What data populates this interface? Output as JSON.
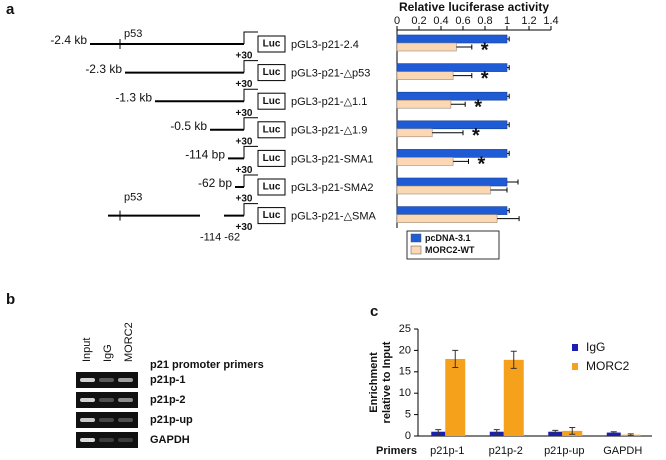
{
  "panel_labels": [
    "a",
    "b",
    "c"
  ],
  "promoter_diagram": {
    "rows": [
      {
        "start": "-2.4 kb",
        "tss": "+30",
        "reporter": "Luc"
      },
      {
        "start": "-2.3 kb",
        "tss": "+30",
        "reporter": "Luc"
      },
      {
        "start": "-1.3 kb",
        "tss": "+30",
        "reporter": "Luc"
      },
      {
        "start": "-0.5 kb",
        "tss": "+30",
        "reporter": "Luc"
      },
      {
        "start": "-114 bp",
        "tss": "+30",
        "reporter": "Luc"
      },
      {
        "start": "-62 bp",
        "tss": "+30",
        "reporter": "Luc"
      },
      {
        "tss": "+30",
        "reporter": "Luc"
      }
    ],
    "p53_labels": [
      "p53",
      "p53"
    ],
    "bottom_label": "-114 -62"
  },
  "gel": {
    "lanes": [
      "Input",
      "IgG",
      "MORC2"
    ],
    "title": "p21 promoter primers",
    "rows": [
      "p21p-1",
      "p21p-2",
      "p21p-up",
      "GAPDH"
    ]
  },
  "chart_data": [
    {
      "type": "hbar",
      "xlabel": "Relative luciferase activity",
      "categories": [
        "pGL3-p21-2.4",
        "pGL3-p21-△p53",
        "pGL3-p21-△1.1",
        "pGL3-p21-△1.9",
        "pGL3-p21-SMA1",
        "pGL3-p21-SMA2",
        "pGL3-p21-△SMA"
      ],
      "series": [
        {
          "name": "pcDNA-3.1",
          "color": "#1f5bd4",
          "values": [
            1,
            1,
            1,
            1,
            1,
            1,
            1
          ],
          "errors": [
            0.02,
            0.02,
            0.02,
            0.02,
            0.02,
            0.1,
            0.02
          ]
        },
        {
          "name": "MORC2-WT",
          "color": "#fcd7b4",
          "values": [
            0.54,
            0.51,
            0.49,
            0.32,
            0.51,
            0.85,
            0.91
          ],
          "errors": [
            0.14,
            0.17,
            0.13,
            0.28,
            0.14,
            0.15,
            0.2
          ]
        }
      ],
      "annotations": [
        "*",
        "*",
        "*",
        "*",
        "*",
        null,
        null
      ],
      "xlim": [
        0,
        1.4
      ],
      "xticks": [
        0,
        0.2,
        0.4,
        0.6,
        0.8,
        1,
        1.2,
        1.4
      ],
      "legend": "lower left"
    },
    {
      "type": "bar",
      "ylabel": [
        "Enrichment",
        "relative to Input"
      ],
      "xlabel": "Primers",
      "categories": [
        "p21p-1",
        "p21p-2",
        "p21p-up",
        "GAPDH"
      ],
      "series": [
        {
          "name": "IgG",
          "color": "#1a1fb0",
          "values": [
            1,
            1,
            1,
            0.8
          ],
          "errors": [
            0.5,
            0.5,
            0.3,
            0.2
          ]
        },
        {
          "name": "MORC2",
          "color": "#f5a11c",
          "values": [
            18,
            17.8,
            1.2,
            0.3
          ],
          "errors": [
            2,
            2,
            0.8,
            0.2
          ]
        }
      ],
      "ylim": [
        0,
        25
      ],
      "yticks": [
        0,
        5,
        10,
        15,
        20,
        25
      ],
      "legend": "upper right"
    }
  ]
}
